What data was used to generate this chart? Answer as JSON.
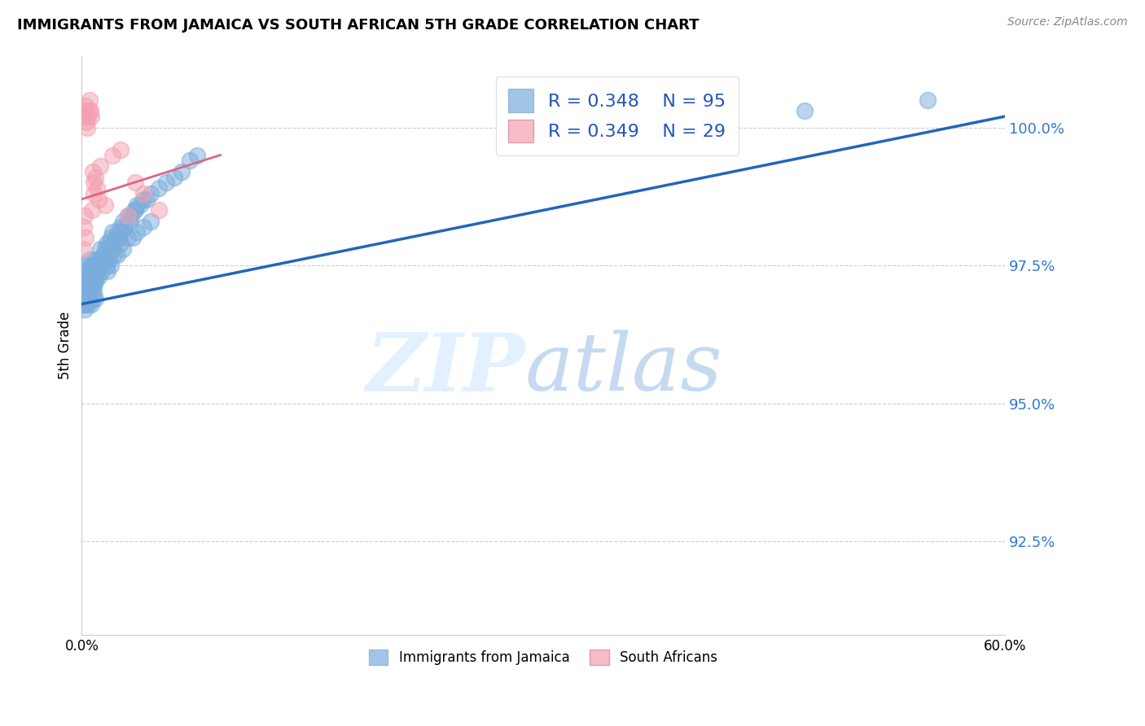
{
  "title": "IMMIGRANTS FROM JAMAICA VS SOUTH AFRICAN 5TH GRADE CORRELATION CHART",
  "source": "Source: ZipAtlas.com",
  "ylabel": "5th Grade",
  "y_ticks": [
    92.5,
    95.0,
    97.5,
    100.0
  ],
  "y_tick_labels": [
    "92.5%",
    "95.0%",
    "97.5%",
    "100.0%"
  ],
  "xlim": [
    0.0,
    60.0
  ],
  "ylim": [
    90.8,
    101.3
  ],
  "legend1_R": "0.348",
  "legend1_N": "95",
  "legend2_R": "0.349",
  "legend2_N": "29",
  "blue_color": "#7AADDC",
  "pink_color": "#F4A0B0",
  "blue_line_color": "#2266BB",
  "pink_line_color": "#DD6688",
  "blue_trend_x0": 0.0,
  "blue_trend_y0": 96.8,
  "blue_trend_x1": 60.0,
  "blue_trend_y1": 100.2,
  "pink_trend_x0": 0.0,
  "pink_trend_y0": 98.7,
  "pink_trend_x1": 9.0,
  "pink_trend_y1": 99.5,
  "jamaica_x": [
    0.1,
    0.15,
    0.15,
    0.2,
    0.2,
    0.25,
    0.25,
    0.3,
    0.3,
    0.35,
    0.4,
    0.4,
    0.45,
    0.5,
    0.5,
    0.5,
    0.55,
    0.6,
    0.6,
    0.65,
    0.7,
    0.7,
    0.75,
    0.8,
    0.8,
    0.85,
    0.9,
    0.9,
    0.95,
    1.0,
    1.0,
    1.1,
    1.1,
    1.2,
    1.2,
    1.3,
    1.3,
    1.4,
    1.5,
    1.5,
    1.6,
    1.7,
    1.8,
    1.9,
    2.0,
    2.0,
    2.1,
    2.2,
    2.3,
    2.4,
    2.5,
    2.6,
    2.7,
    2.8,
    3.0,
    3.1,
    3.2,
    3.4,
    3.5,
    3.6,
    3.8,
    4.0,
    4.2,
    4.5,
    5.0,
    5.5,
    6.0,
    6.5,
    7.0,
    7.5,
    1.5,
    1.6,
    1.7,
    1.8,
    1.9,
    2.1,
    2.3,
    2.5,
    2.7,
    3.0,
    3.3,
    3.6,
    4.0,
    4.5,
    0.1,
    0.2,
    0.3,
    0.4,
    0.5,
    0.6,
    0.7,
    0.8,
    0.9,
    47.0,
    55.0
  ],
  "jamaica_y": [
    97.1,
    97.3,
    96.9,
    97.0,
    96.8,
    97.2,
    97.4,
    97.1,
    97.5,
    97.0,
    97.2,
    96.9,
    97.3,
    97.0,
    97.4,
    97.6,
    97.2,
    97.3,
    97.5,
    97.1,
    97.4,
    97.2,
    97.3,
    97.5,
    97.1,
    97.4,
    97.2,
    97.6,
    97.3,
    97.4,
    97.5,
    97.6,
    97.3,
    97.5,
    97.8,
    97.6,
    97.4,
    97.7,
    97.8,
    97.6,
    97.9,
    97.8,
    97.9,
    98.0,
    97.8,
    98.1,
    97.9,
    98.0,
    98.1,
    98.0,
    98.2,
    98.1,
    98.3,
    98.2,
    98.4,
    98.3,
    98.4,
    98.5,
    98.5,
    98.6,
    98.6,
    98.7,
    98.7,
    98.8,
    98.9,
    99.0,
    99.1,
    99.2,
    99.4,
    99.5,
    97.6,
    97.5,
    97.4,
    97.6,
    97.5,
    97.7,
    97.7,
    97.9,
    97.8,
    98.0,
    98.0,
    98.1,
    98.2,
    98.3,
    96.8,
    96.7,
    96.9,
    96.8,
    96.9,
    96.8,
    96.9,
    97.0,
    96.9,
    100.3,
    100.5
  ],
  "sa_x": [
    0.1,
    0.2,
    0.25,
    0.3,
    0.35,
    0.4,
    0.5,
    0.5,
    0.55,
    0.6,
    0.65,
    0.7,
    0.75,
    0.8,
    0.9,
    1.0,
    1.1,
    1.2,
    1.5,
    2.0,
    2.5,
    3.0,
    3.5,
    4.0,
    5.0,
    0.1,
    0.15,
    0.2,
    0.25
  ],
  "sa_y": [
    100.2,
    100.3,
    100.4,
    100.1,
    100.0,
    100.2,
    100.3,
    100.5,
    100.3,
    100.2,
    98.5,
    99.2,
    99.0,
    98.8,
    99.1,
    98.9,
    98.7,
    99.3,
    98.6,
    99.5,
    99.6,
    98.4,
    99.0,
    98.8,
    98.5,
    97.8,
    98.2,
    98.4,
    98.0
  ]
}
